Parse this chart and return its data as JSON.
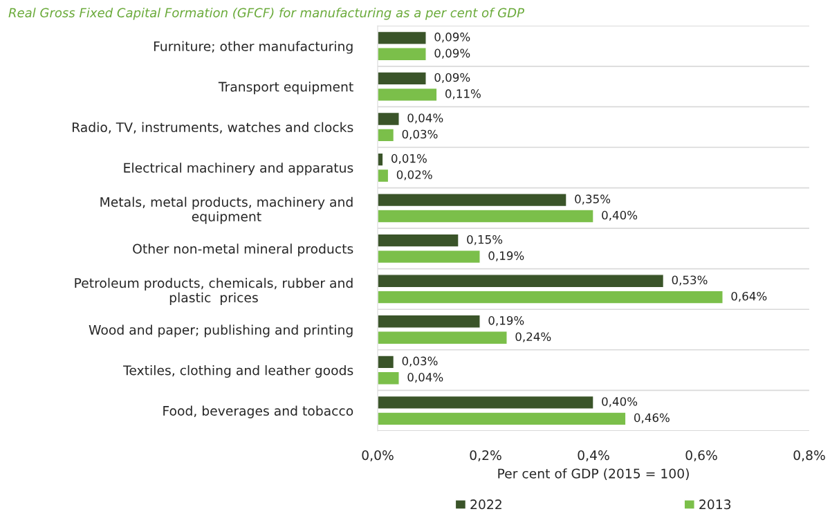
{
  "chart_data": {
    "type": "bar",
    "orientation": "horizontal",
    "title": "Real Gross Fixed Capital Formation (GFCF) for manufacturing as a per cent of GDP",
    "xlabel": "Per cent of GDP (2015 = 100)",
    "categories": [
      "Furniture; other manufacturing",
      "Transport equipment",
      "Radio, TV, instruments, watches and clocks",
      "Electrical machinery and apparatus",
      "Metals, metal products, machinery and\nequipment",
      "Other non-metal mineral products",
      "Petroleum products, chemicals, rubber and\nplastic  prices",
      "Wood and paper; publishing and printing",
      "Textiles, clothing and leather goods",
      "Food, beverages and tobacco"
    ],
    "series": [
      {
        "name": "2022",
        "color": "#3a5429",
        "values": [
          0.09,
          0.09,
          0.04,
          0.01,
          0.35,
          0.15,
          0.53,
          0.19,
          0.03,
          0.4
        ],
        "value_labels": [
          "0,09%",
          "0,09%",
          "0,04%",
          "0,01%",
          "0,35%",
          "0,15%",
          "0,53%",
          "0,19%",
          "0,03%",
          "0,40%"
        ]
      },
      {
        "name": "2013",
        "color": "#7bbf4a",
        "values": [
          0.09,
          0.11,
          0.03,
          0.02,
          0.4,
          0.19,
          0.64,
          0.24,
          0.04,
          0.46
        ],
        "value_labels": [
          "0,09%",
          "0,11%",
          "0,03%",
          "0,02%",
          "0,40%",
          "0,19%",
          "0,64%",
          "0,24%",
          "0,04%",
          "0,46%"
        ]
      }
    ],
    "xlim": [
      0,
      0.8
    ],
    "xticks": [
      {
        "value": 0,
        "label": "0,0%"
      },
      {
        "value": 0.2,
        "label": "0,2%"
      },
      {
        "value": 0.4,
        "label": "0,4%"
      },
      {
        "value": 0.6,
        "label": "0,6%"
      },
      {
        "value": 0.8,
        "label": "0,8%"
      }
    ],
    "grid": "y",
    "legend": "bottom"
  }
}
